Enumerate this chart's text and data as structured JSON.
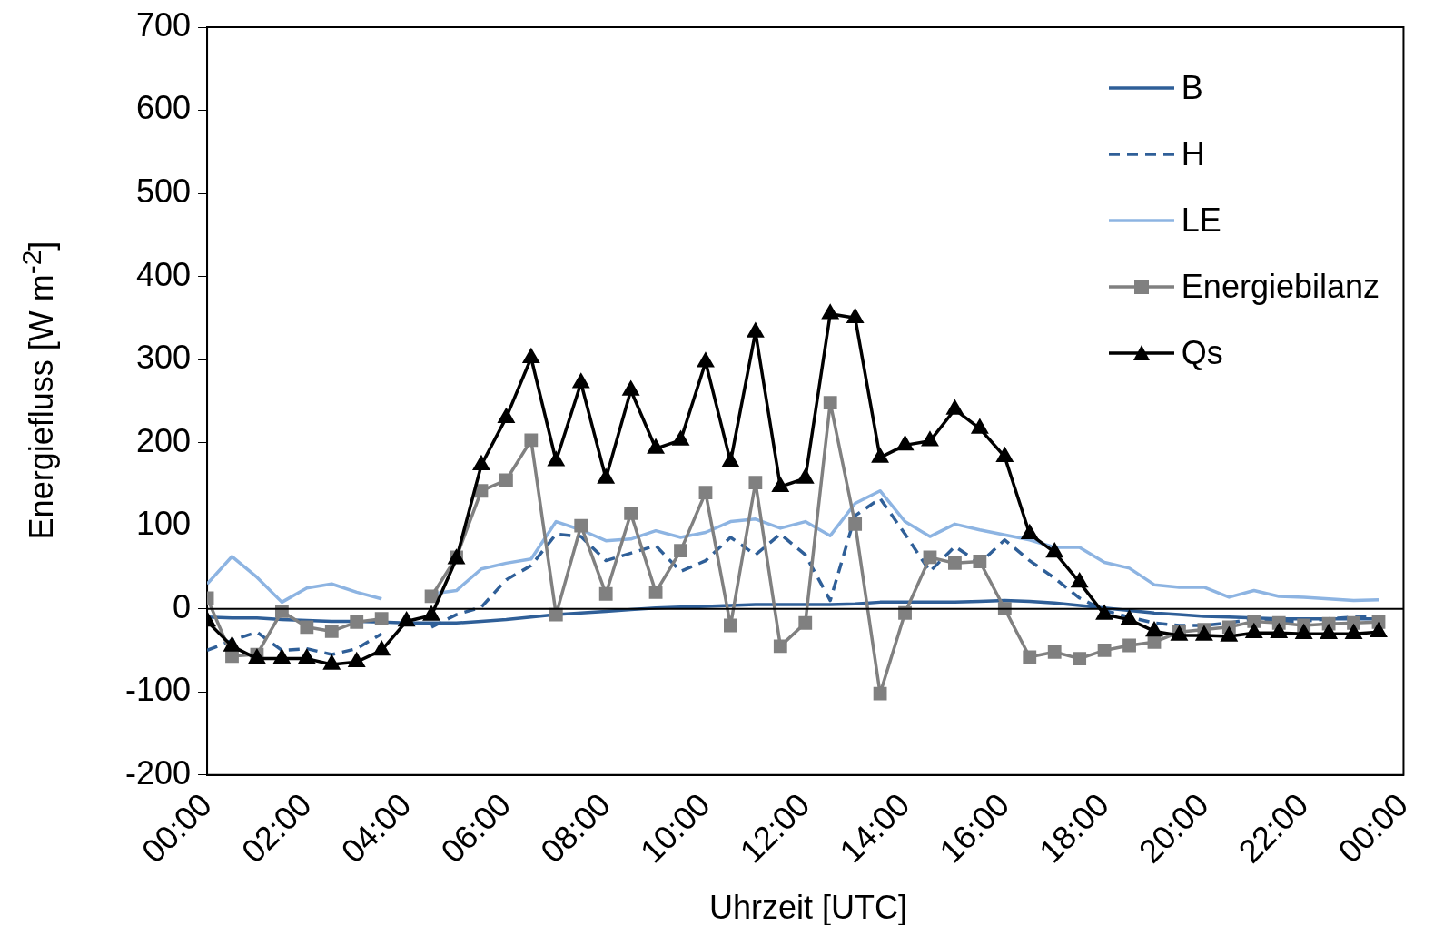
{
  "chart_data": {
    "type": "line",
    "xlabel": "Uhrzeit [UTC]",
    "ylabel": "Energiefluss [W m$^{-2}$]",
    "x": [
      0,
      0.5,
      1,
      1.5,
      2,
      2.5,
      3,
      3.5,
      4,
      4.5,
      5,
      5.5,
      6,
      6.5,
      7,
      7.5,
      8,
      8.5,
      9,
      9.5,
      10,
      10.5,
      11,
      11.5,
      12,
      12.5,
      13,
      13.5,
      14,
      14.5,
      15,
      15.5,
      16,
      16.5,
      17,
      17.5,
      18,
      18.5,
      19,
      19.5,
      20,
      20.5,
      21,
      21.5,
      22,
      22.5,
      23,
      23.5
    ],
    "xlim": [
      0,
      24
    ],
    "xticks": [
      {
        "value": 0,
        "label": "00:00"
      },
      {
        "value": 2,
        "label": "02:00"
      },
      {
        "value": 4,
        "label": "04:00"
      },
      {
        "value": 6,
        "label": "06:00"
      },
      {
        "value": 8,
        "label": "08:00"
      },
      {
        "value": 10,
        "label": "10:00"
      },
      {
        "value": 12,
        "label": "12:00"
      },
      {
        "value": 14,
        "label": "14:00"
      },
      {
        "value": 16,
        "label": "16:00"
      },
      {
        "value": 18,
        "label": "18:00"
      },
      {
        "value": 20,
        "label": "20:00"
      },
      {
        "value": 22,
        "label": "22:00"
      },
      {
        "value": 24,
        "label": "00:00"
      }
    ],
    "ylim": [
      -200,
      700
    ],
    "yticks": [
      -200,
      -100,
      0,
      100,
      200,
      300,
      400,
      500,
      600,
      700
    ],
    "ref_lines": [
      {
        "axis": "y",
        "value": 0,
        "color": "#000000"
      }
    ],
    "grid": false,
    "legend": "top right",
    "series": [
      {
        "name": "B",
        "color": "#2f5f98",
        "marker": "none",
        "line_style": "solid",
        "values": [
          -10,
          -11,
          -11,
          -13,
          -14,
          -15,
          -15,
          -16,
          -17,
          -17,
          -17,
          -15,
          -13,
          -10,
          -7,
          -5,
          -3,
          -1,
          1,
          2,
          3,
          4,
          5,
          5,
          5,
          5,
          6,
          8,
          8,
          8,
          8,
          9,
          10,
          9,
          7,
          4,
          1,
          -2,
          -5,
          -7,
          -9,
          -10,
          -11,
          -12,
          -12,
          -12,
          -12,
          -12
        ]
      },
      {
        "name": "H",
        "color": "#2f5f98",
        "marker": "none",
        "line_style": "dashed",
        "values": [
          -50,
          -38,
          -28,
          -50,
          -48,
          -55,
          -48,
          -30,
          null,
          -22,
          -7,
          2,
          35,
          52,
          90,
          87,
          58,
          67,
          76,
          45,
          58,
          86,
          65,
          90,
          65,
          10,
          112,
          133,
          90,
          45,
          75,
          55,
          83,
          58,
          37,
          13,
          -2,
          -10,
          -17,
          -20,
          -20,
          -17,
          -12,
          -15,
          -15,
          -12,
          -10,
          -10
        ]
      },
      {
        "name": "LE",
        "color": "#8db4e2",
        "marker": "none",
        "line_style": "solid",
        "values": [
          30,
          63,
          38,
          8,
          25,
          30,
          20,
          12,
          null,
          18,
          22,
          48,
          55,
          60,
          105,
          95,
          82,
          84,
          94,
          86,
          92,
          105,
          108,
          97,
          105,
          88,
          127,
          142,
          105,
          87,
          102,
          95,
          89,
          83,
          74,
          74,
          56,
          49,
          29,
          26,
          26,
          14,
          22,
          15,
          14,
          12,
          10,
          11
        ]
      },
      {
        "name": "Energiebilanz",
        "color": "#808080",
        "marker": "square",
        "line_style": "solid",
        "values": [
          13,
          -57,
          -55,
          -3,
          -22,
          -27,
          -16,
          -12,
          null,
          15,
          62,
          142,
          155,
          203,
          -7,
          100,
          18,
          115,
          20,
          70,
          140,
          -20,
          152,
          -45,
          -17,
          248,
          102,
          -102,
          -5,
          62,
          55,
          57,
          0,
          -58,
          -52,
          -60,
          -50,
          -44,
          -40,
          -28,
          -25,
          -22,
          -15,
          -17,
          -20,
          -18,
          -17,
          -16
        ]
      },
      {
        "name": "Qs",
        "color": "#000000",
        "marker": "triangle",
        "line_style": "solid",
        "values": [
          -15,
          -45,
          -60,
          -60,
          -60,
          -67,
          -64,
          -50,
          -15,
          -8,
          60,
          173,
          230,
          302,
          178,
          272,
          157,
          263,
          193,
          203,
          297,
          177,
          333,
          147,
          157,
          355,
          350,
          182,
          197,
          202,
          240,
          217,
          183,
          90,
          68,
          32,
          -7,
          -13,
          -27,
          -32,
          -32,
          -33,
          -29,
          -29,
          -30,
          -30,
          -30,
          -28
        ]
      }
    ]
  }
}
